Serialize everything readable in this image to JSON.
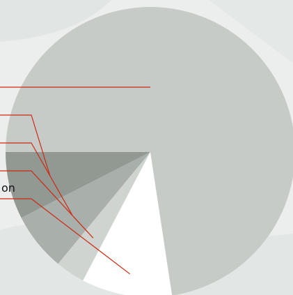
{
  "chart_data": {
    "type": "pie",
    "start_angle_deg": 180,
    "direction": "counterclockwise",
    "slices": [
      {
        "label": "",
        "value": 7.5,
        "color": "#929892"
      },
      {
        "label": "",
        "value": 6.5,
        "color": "#a9afab"
      },
      {
        "label": "",
        "value": 3.3,
        "color": "#cfd4d0"
      },
      {
        "label": "",
        "value": 10.1,
        "color": "#ffffff"
      },
      {
        "label": "",
        "value": 72.6,
        "color": "#c6cbc7"
      }
    ],
    "visible_label_fragment": "on",
    "leader_line_color": "#cc2a12",
    "background_colors": [
      "#eceeed",
      "#dfe3e1"
    ]
  }
}
